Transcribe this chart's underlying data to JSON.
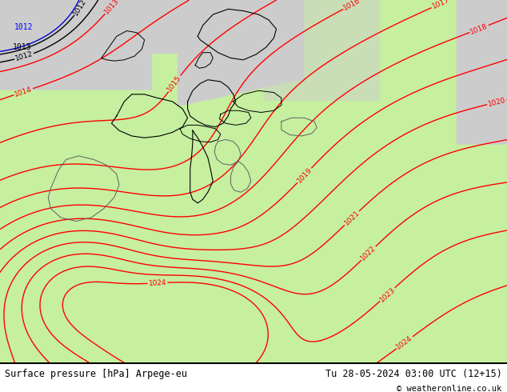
{
  "title_left": "Surface pressure [hPa] Arpege-eu",
  "title_right": "Tu 28-05-2024 03:00 UTC (12+15)",
  "copyright": "© weatheronline.co.uk",
  "background_land_green": [
    0.78,
    0.94,
    0.63
  ],
  "background_sea_gray": [
    0.8,
    0.8,
    0.8
  ],
  "contour_color_red": "#ff0000",
  "contour_color_black": "#000000",
  "contour_color_blue": "#0000cc",
  "contour_color_gray": "#808080",
  "figsize": [
    6.34,
    4.9
  ],
  "dpi": 100,
  "pressure_min": 1011,
  "pressure_max": 1025
}
